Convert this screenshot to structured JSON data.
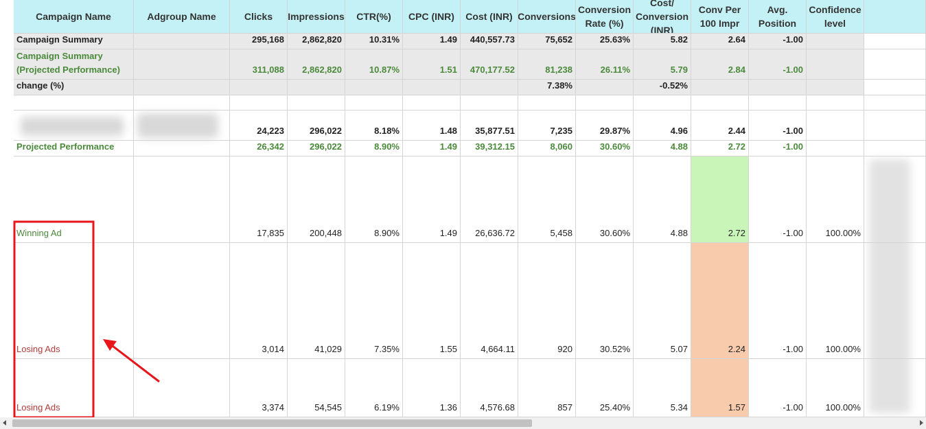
{
  "table": {
    "headers": [
      "Campaign Name",
      "Adgroup Name",
      "Clicks",
      "Impressions",
      "CTR(%)",
      "CPC (INR)",
      "Cost (INR)",
      "Conversions",
      "Conversion Rate (%)",
      "Cost/ Conversion (INR)",
      "Conv Per 100 Impr",
      "Avg. Position",
      "Confidence level"
    ],
    "rows": [
      [
        "Campaign Summary",
        null,
        "295,168",
        "2,862,820",
        "10.31%",
        "1.49",
        "440,557.73",
        "75,652",
        "25.63%",
        "5.82",
        "2.64",
        "-1.00",
        null
      ],
      [
        "Campaign Summary (Projected Performance)",
        null,
        "311,088",
        "2,862,820",
        "10.87%",
        "1.51",
        "470,177.52",
        "81,238",
        "26.11%",
        "5.79",
        "2.84",
        "-1.00",
        null
      ],
      [
        "change (%)",
        null,
        null,
        null,
        null,
        null,
        null,
        "7.38%",
        null,
        "-0.52%",
        null,
        null,
        null
      ],
      [
        null,
        null,
        null,
        null,
        null,
        null,
        null,
        null,
        null,
        null,
        null,
        null,
        null
      ],
      [
        null,
        null,
        "24,223",
        "296,022",
        "8.18%",
        "1.48",
        "35,877.51",
        "7,235",
        "29.87%",
        "4.96",
        "2.44",
        "-1.00",
        null
      ],
      [
        "Projected Performance",
        null,
        "26,342",
        "296,022",
        "8.90%",
        "1.49",
        "39,312.15",
        "8,060",
        "30.60%",
        "4.88",
        "2.72",
        "-1.00",
        null
      ],
      [
        "Winning Ad",
        null,
        "17,835",
        "200,448",
        "8.90%",
        "1.49",
        "26,636.72",
        "5,458",
        "30.60%",
        "4.88",
        "2.72",
        "-1.00",
        "100.00%"
      ],
      [
        "Losing Ads",
        null,
        "3,014",
        "41,029",
        "7.35%",
        "1.55",
        "4,664.11",
        "920",
        "30.52%",
        "5.07",
        "2.24",
        "-1.00",
        "100.00%"
      ],
      [
        "Losing Ads",
        null,
        "3,374",
        "54,545",
        "6.19%",
        "1.36",
        "4,576.68",
        "857",
        "25.40%",
        "5.34",
        "1.57",
        "-1.00",
        "100.00%"
      ]
    ]
  }
}
